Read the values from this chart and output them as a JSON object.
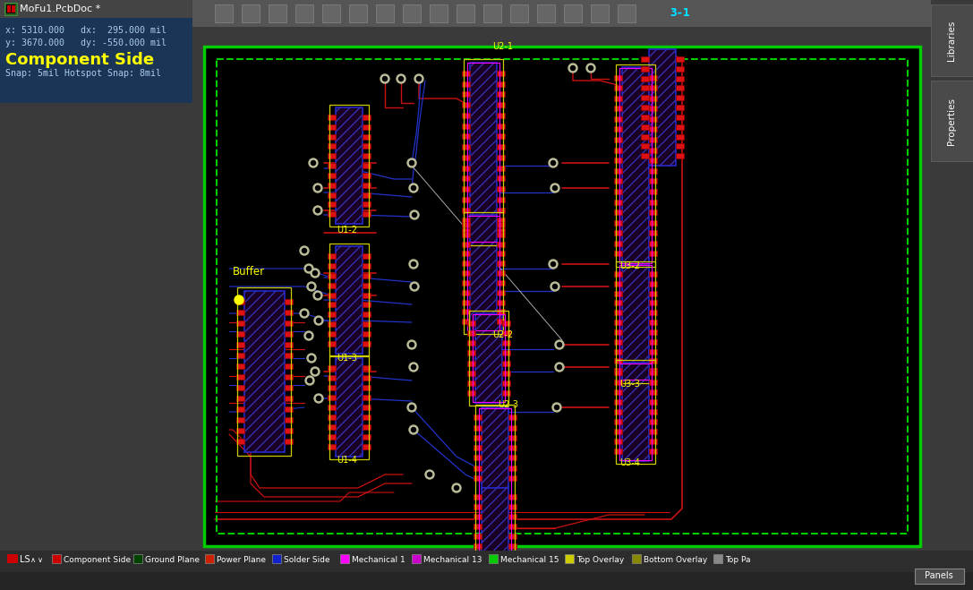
{
  "bg_color": "#3a3a3a",
  "pcb_bg": "#000000",
  "board_outline_color": "#00bb00",
  "info_panel_color": "#1a3555",
  "title_bar_color": "#444444",
  "title_text": "MoFu1.PcbDoc *",
  "info_line1": "x: 5310.000   dx:  295.000 mil",
  "info_line2": "y: 3670.000   dy: -550.000 mil",
  "layer_text": "Component Side",
  "snap_text": "Snap: 5mil Hotspot Snap: 8mil",
  "buffer_label": "Buffer",
  "corner_label": "3-1",
  "pad_fill": "#dd1111",
  "pad_dark": "#990000",
  "ic_body": "#1a0025",
  "ic_edge": "#2222cc",
  "ic_hatch": "#3333aa",
  "via_outer": "#bbbb99",
  "via_inner": "#000000",
  "red_trace": "#cc1111",
  "blue_trace": "#2233cc",
  "yellow_label": "#ffff00",
  "magenta": "#ff00ff",
  "green_outline": "#00aa00",
  "legend_items": [
    {
      "color": "#cc0000",
      "label": "Component Side"
    },
    {
      "color": "#004400",
      "label": "Ground Plane"
    },
    {
      "color": "#cc2200",
      "label": "Power Plane"
    },
    {
      "color": "#1122cc",
      "label": "Solder Side"
    },
    {
      "color": "#ff00ff",
      "label": "Mechanical 1"
    },
    {
      "color": "#cc00cc",
      "label": "Mechanical 13"
    },
    {
      "color": "#00cc00",
      "label": "Mechanical 15"
    },
    {
      "color": "#cccc00",
      "label": "Top Overlay"
    },
    {
      "color": "#888800",
      "label": "Bottom Overlay"
    },
    {
      "color": "#888888",
      "label": "Top Pa"
    }
  ],
  "ls_label": "LS"
}
